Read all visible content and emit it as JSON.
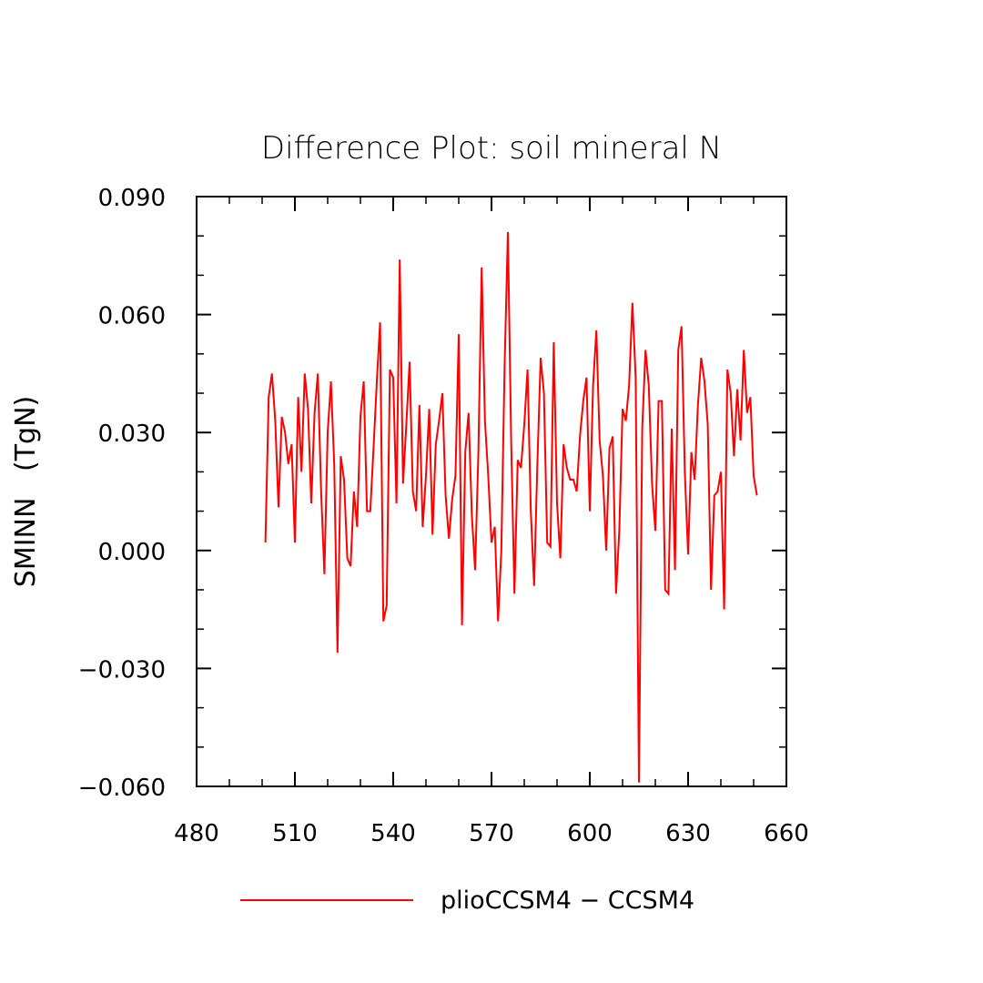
{
  "chart_data": {
    "type": "line",
    "title": "Difference Plot: soil mineral N",
    "xlabel": "",
    "ylabel": "SMINN   (TgN)",
    "xlim": [
      480,
      660
    ],
    "ylim": [
      -0.06,
      0.09
    ],
    "xticks": [
      "480",
      "510",
      "540",
      "570",
      "600",
      "630",
      "660"
    ],
    "yticks": [
      "0.090",
      "0.060",
      "0.030",
      "0.000",
      "−0.030",
      "−0.060"
    ],
    "ytick_values": [
      0.09,
      0.06,
      0.03,
      0.0,
      -0.03,
      -0.06
    ],
    "xtick_values": [
      480,
      510,
      540,
      570,
      600,
      630,
      660
    ],
    "grid": false,
    "legend_position": "bottom-center",
    "series": [
      {
        "name": "plioCCSM4 − CCSM4",
        "color": "#ff0000",
        "x_start": 501,
        "x_step": 1,
        "values": [
          0.002,
          0.039,
          0.045,
          0.033,
          0.011,
          0.034,
          0.03,
          0.022,
          0.027,
          0.002,
          0.039,
          0.02,
          0.045,
          0.036,
          0.012,
          0.035,
          0.045,
          0.015,
          -0.006,
          0.03,
          0.043,
          0.022,
          -0.026,
          0.024,
          0.018,
          -0.002,
          -0.004,
          0.015,
          0.006,
          0.034,
          0.043,
          0.01,
          0.01,
          0.026,
          0.043,
          0.058,
          -0.018,
          -0.014,
          0.046,
          0.044,
          0.012,
          0.074,
          0.017,
          0.032,
          0.048,
          0.015,
          0.01,
          0.037,
          0.006,
          0.019,
          0.036,
          0.004,
          0.027,
          0.033,
          0.04,
          0.014,
          0.003,
          0.013,
          0.019,
          0.055,
          -0.019,
          0.025,
          0.035,
          0.009,
          -0.005,
          0.025,
          0.072,
          0.033,
          0.019,
          0.002,
          0.006,
          -0.018,
          0.0,
          0.047,
          0.081,
          0.028,
          -0.011,
          0.023,
          0.021,
          0.032,
          0.046,
          0.01,
          -0.009,
          0.022,
          0.049,
          0.04,
          0.002,
          0.001,
          0.053,
          0.012,
          -0.002,
          0.027,
          0.021,
          0.018,
          0.018,
          0.015,
          0.029,
          0.038,
          0.044,
          0.01,
          0.042,
          0.056,
          0.028,
          0.019,
          0.0,
          0.026,
          0.029,
          -0.011,
          0.005,
          0.036,
          0.033,
          0.042,
          0.063,
          0.044,
          -0.059,
          0.031,
          0.051,
          0.042,
          0.017,
          0.005,
          0.038,
          0.038,
          -0.01,
          -0.011,
          0.031,
          -0.005,
          0.051,
          0.057,
          0.02,
          -0.001,
          0.025,
          0.018,
          0.037,
          0.049,
          0.043,
          0.032,
          -0.01,
          0.014,
          0.015,
          0.02,
          -0.015,
          0.046,
          0.04,
          0.024,
          0.041,
          0.028,
          0.051,
          0.035,
          0.039,
          0.019,
          0.014
        ]
      }
    ]
  }
}
